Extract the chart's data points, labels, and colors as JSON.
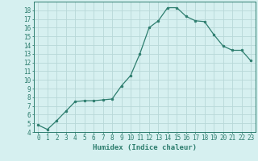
{
  "title": "",
  "xlabel": "Humidex (Indice chaleur)",
  "ylabel": "",
  "x": [
    0,
    1,
    2,
    3,
    4,
    5,
    6,
    7,
    8,
    9,
    10,
    11,
    12,
    13,
    14,
    15,
    16,
    17,
    18,
    19,
    20,
    21,
    22,
    23
  ],
  "y": [
    4.8,
    4.3,
    5.3,
    6.4,
    7.5,
    7.6,
    7.6,
    7.7,
    7.8,
    9.3,
    10.5,
    13.0,
    16.0,
    16.8,
    18.3,
    18.3,
    17.3,
    16.8,
    16.7,
    15.2,
    13.9,
    13.4,
    13.4,
    12.2
  ],
  "line_color": "#2d7d6e",
  "marker": "o",
  "marker_size": 2.0,
  "background_color": "#d6f0f0",
  "grid_color": "#b8d8d8",
  "ylim": [
    4,
    19
  ],
  "xlim": [
    -0.5,
    23.5
  ],
  "yticks": [
    4,
    5,
    6,
    7,
    8,
    9,
    10,
    11,
    12,
    13,
    14,
    15,
    16,
    17,
    18
  ],
  "xticks": [
    0,
    1,
    2,
    3,
    4,
    5,
    6,
    7,
    8,
    9,
    10,
    11,
    12,
    13,
    14,
    15,
    16,
    17,
    18,
    19,
    20,
    21,
    22,
    23
  ],
  "tick_label_fontsize": 5.5,
  "xlabel_fontsize": 6.5,
  "axis_color": "#2d7d6e",
  "linewidth": 0.9
}
